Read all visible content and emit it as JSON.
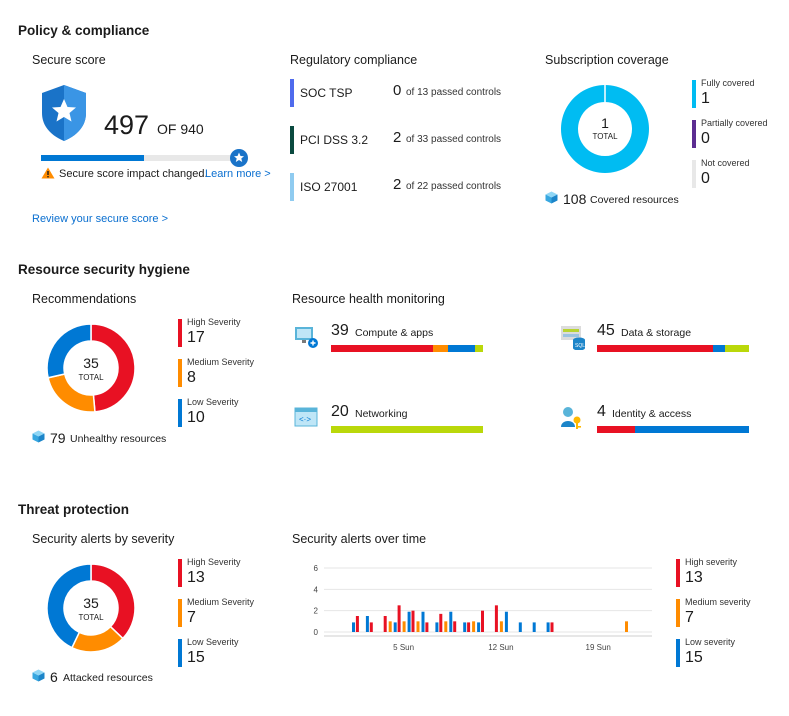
{
  "colors": {
    "high": "#e81123",
    "medium": "#ff8c00",
    "low": "#0078d4",
    "green": "#bad80a",
    "cyan": "#00bcf2",
    "purple": "#5c2d91",
    "grey": "#e8e8e8"
  },
  "policy": {
    "title": "Policy & compliance",
    "secure_score": {
      "title": "Secure score",
      "score": "497",
      "of_label": "OF 940",
      "progress": 0.53,
      "warning_text": "Secure score impact changed.",
      "learn_more": "Learn more >",
      "review_link": "Review your secure score >"
    },
    "regulatory": {
      "title": "Regulatory compliance",
      "items": [
        {
          "name": "SOC TSP",
          "passed": "0",
          "detail": "of 13 passed controls",
          "color": "#4f6bed"
        },
        {
          "name": "PCI DSS 3.2",
          "passed": "2",
          "detail": "of 33 passed controls",
          "color": "#0a4a3f"
        },
        {
          "name": "ISO 27001",
          "passed": "2",
          "detail": "of 22 passed controls",
          "color": "#8fcbf0"
        }
      ]
    },
    "coverage": {
      "title": "Subscription coverage",
      "total": "1",
      "total_label": "TOTAL",
      "legend": [
        {
          "label": "Fully covered",
          "value": "1",
          "color": "#00bcf2"
        },
        {
          "label": "Partially covered",
          "value": "0",
          "color": "#5c2d91"
        },
        {
          "label": "Not covered",
          "value": "0",
          "color": "#e8e8e8"
        }
      ],
      "resources_count": "108",
      "resources_label": "Covered resources"
    }
  },
  "hygiene": {
    "title": "Resource security hygiene",
    "recommendations": {
      "title": "Recommendations",
      "total": "35",
      "total_label": "TOTAL",
      "legend": [
        {
          "label": "High Severity",
          "value": "17",
          "color": "#e81123"
        },
        {
          "label": "Medium Severity",
          "value": "8",
          "color": "#ff8c00"
        },
        {
          "label": "Low Severity",
          "value": "10",
          "color": "#0078d4"
        }
      ],
      "resources_count": "79",
      "resources_label": "Unhealthy resources"
    },
    "health": {
      "title": "Resource health monitoring",
      "items": [
        {
          "count": "39",
          "label": "Compute & apps",
          "icon": "compute-icon",
          "segments": [
            {
              "v": 0.67,
              "c": "#e81123"
            },
            {
              "v": 0.1,
              "c": "#ff8c00"
            },
            {
              "v": 0.18,
              "c": "#0078d4"
            },
            {
              "v": 0.05,
              "c": "#bad80a"
            }
          ]
        },
        {
          "count": "45",
          "label": "Data & storage",
          "icon": "sql-storage-icon",
          "segments": [
            {
              "v": 0.76,
              "c": "#e81123"
            },
            {
              "v": 0.08,
              "c": "#0078d4"
            },
            {
              "v": 0.16,
              "c": "#bad80a"
            }
          ]
        },
        {
          "count": "20",
          "label": "Networking",
          "icon": "networking-icon",
          "segments": [
            {
              "v": 1.0,
              "c": "#bad80a"
            }
          ]
        },
        {
          "count": "4",
          "label": "Identity & access",
          "icon": "identity-key-icon",
          "segments": [
            {
              "v": 0.25,
              "c": "#e81123"
            },
            {
              "v": 0.75,
              "c": "#0078d4"
            }
          ]
        }
      ]
    }
  },
  "threat": {
    "title": "Threat protection",
    "alerts_severity": {
      "title": "Security alerts by severity",
      "total": "35",
      "total_label": "TOTAL",
      "legend": [
        {
          "label": "High Severity",
          "value": "13",
          "color": "#e81123"
        },
        {
          "label": "Medium Severity",
          "value": "7",
          "color": "#ff8c00"
        },
        {
          "label": "Low Severity",
          "value": "15",
          "color": "#0078d4"
        }
      ],
      "resources_count": "6",
      "resources_label": "Attacked resources"
    },
    "alerts_time": {
      "title": "Security alerts over time",
      "legend": [
        {
          "label": "High severity",
          "value": "13",
          "color": "#e81123"
        },
        {
          "label": "Medium severity",
          "value": "7",
          "color": "#ff8c00"
        },
        {
          "label": "Low severity",
          "value": "15",
          "color": "#0078d4"
        }
      ]
    }
  },
  "chart_data": [
    {
      "type": "pie",
      "title": "",
      "labels": [
        "Fully covered",
        "Partially covered",
        "Not covered"
      ],
      "values": [
        1,
        0,
        0
      ]
    },
    {
      "type": "pie",
      "title": "",
      "labels": [
        "High Severity",
        "Medium Severity",
        "Low Severity"
      ],
      "values": [
        17,
        8,
        10
      ]
    },
    {
      "type": "pie",
      "title": "",
      "labels": [
        "High Severity",
        "Medium Severity",
        "Low Severity"
      ],
      "values": [
        13,
        7,
        15
      ]
    },
    {
      "type": "bar",
      "title": "",
      "y_ticks": [
        "0",
        "2",
        "4",
        "6"
      ],
      "ylim": [
        0,
        6
      ],
      "x_tick_labels": [
        {
          "day": 5,
          "label": "5 Sun"
        },
        {
          "day": 12,
          "label": "12 Sun"
        },
        {
          "day": 19,
          "label": "19 Sun"
        }
      ],
      "x": [
        1,
        2,
        3,
        4,
        5,
        6,
        7,
        8,
        9,
        10,
        11,
        12,
        13,
        14,
        15,
        16,
        17,
        18,
        19,
        20,
        21
      ],
      "series": [
        {
          "name": "High severity",
          "values": [
            0,
            1.5,
            0.9,
            1.5,
            2.5,
            2.0,
            0.9,
            1.7,
            1.0,
            0.9,
            2.0,
            2.5,
            0,
            0,
            0,
            0.9,
            0,
            0,
            0,
            0,
            0
          ]
        },
        {
          "name": "Medium severity",
          "values": [
            0,
            0,
            0,
            1.0,
            1.0,
            1.0,
            0,
            1.0,
            0,
            1.0,
            0,
            1.0,
            0,
            0,
            0,
            0,
            0,
            0,
            0,
            0,
            1.0
          ]
        },
        {
          "name": "Low severity",
          "values": [
            0.9,
            1.5,
            0,
            0.9,
            1.9,
            1.9,
            0.9,
            1.9,
            0.9,
            0.9,
            0,
            1.9,
            0.9,
            0.9,
            0.9,
            0,
            0,
            0,
            0,
            0,
            0
          ]
        }
      ]
    }
  ]
}
